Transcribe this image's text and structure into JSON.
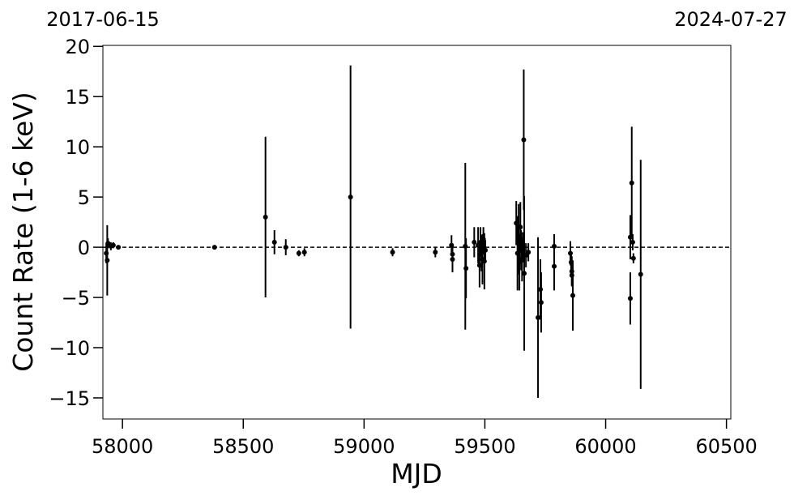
{
  "chart_data": {
    "type": "errorbar",
    "xlabel": "MJD",
    "ylabel": "Count Rate (1-6 keV)",
    "x": [
      57937,
      57933,
      57940,
      57952,
      57962,
      57983,
      58381,
      58592,
      58629,
      58676,
      58730,
      58753,
      58944,
      59118,
      59295,
      59362,
      59366,
      59366,
      59419,
      59422,
      59456,
      59472,
      59478,
      59482,
      59486,
      59490,
      59494,
      59498,
      59502,
      59630,
      59635,
      59640,
      59643,
      59647,
      59650,
      59654,
      59657,
      59661,
      59663,
      59670,
      59680,
      59720,
      59730,
      59733,
      59787,
      59787,
      59854,
      59857,
      59860,
      59860,
      59864,
      60102,
      60102,
      60108,
      60112,
      60115,
      60145
    ],
    "values": [
      -1.3,
      -0.6,
      0.4,
      0.1,
      0.2,
      0.0,
      0.0,
      3.0,
      0.5,
      0.0,
      -0.6,
      -0.5,
      5.0,
      -0.5,
      -0.5,
      0.2,
      -0.7,
      -1.2,
      0.1,
      -2.1,
      0.5,
      0.2,
      -1.8,
      0.5,
      -0.6,
      -1.2,
      0.8,
      -1.4,
      -0.3,
      2.4,
      -0.6,
      0.8,
      -1.5,
      2.0,
      -0.3,
      -1.2,
      0.0,
      10.7,
      -2.6,
      -0.8,
      -0.5,
      -7.0,
      -4.2,
      -5.5,
      0.1,
      -1.9,
      -0.6,
      -1.5,
      -2.4,
      -2.8,
      -4.8,
      1.0,
      -5.1,
      6.4,
      0.5,
      -1.1,
      -2.7
    ],
    "errors": [
      3.5,
      1.0,
      0.5,
      0.4,
      0.3,
      0.2,
      0.2,
      8.0,
      1.2,
      0.8,
      0.3,
      0.4,
      13.1,
      0.4,
      0.5,
      1.0,
      0.6,
      1.3,
      8.3,
      3.0,
      1.5,
      1.8,
      2.2,
      1.5,
      1.8,
      2.5,
      1.2,
      2.8,
      1.0,
      2.2,
      3.7,
      3.5,
      2.8,
      2.5,
      2.0,
      2.2,
      1.5,
      7.0,
      7.7,
      1.2,
      0.9,
      8.0,
      3.0,
      3.0,
      1.2,
      2.4,
      1.2,
      1.0,
      1.5,
      1.0,
      3.5,
      2.2,
      2.6,
      5.6,
      0.8,
      0.5,
      11.4
    ],
    "color": "#000000",
    "hline": 0,
    "xlim": [
      57919,
      60518
    ],
    "ylim": [
      -17.1,
      20.1
    ],
    "xticks": [
      58000,
      58500,
      59000,
      59500,
      60000,
      60500
    ],
    "yticks": [
      {
        "value": -15,
        "label": "−15"
      },
      {
        "value": -10,
        "label": "−10"
      },
      {
        "value": -5,
        "label": "−5"
      },
      0,
      5,
      10,
      15,
      20
    ],
    "x2ticks": [
      {
        "value": 57919,
        "label": "2017-06-15"
      },
      {
        "value": 60518,
        "label": "2024-07-27"
      }
    ]
  }
}
